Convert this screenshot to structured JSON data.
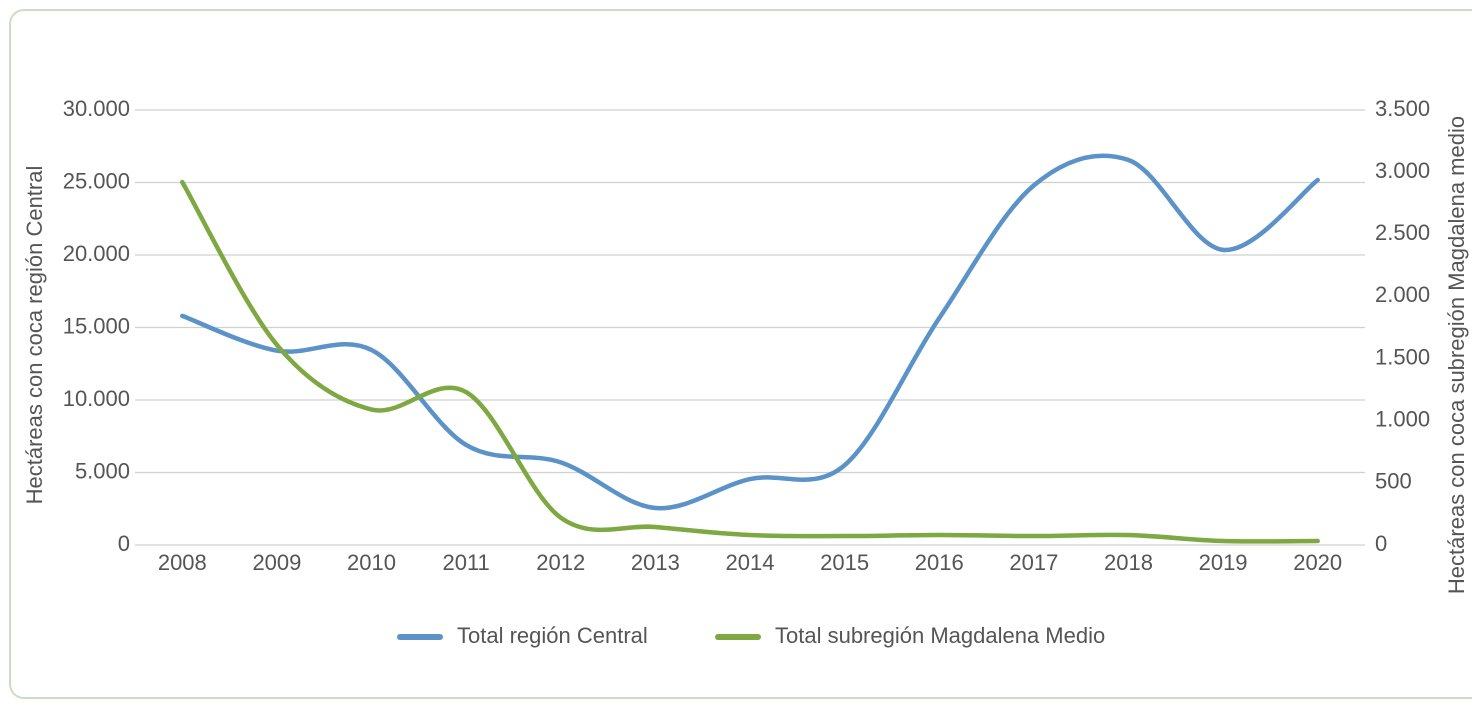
{
  "chart_data": {
    "type": "line",
    "categories": [
      "2008",
      "2009",
      "2010",
      "2011",
      "2012",
      "2013",
      "2014",
      "2015",
      "2016",
      "2017",
      "2018",
      "2019",
      "2020"
    ],
    "series": [
      {
        "name": "Total región Central",
        "color": "#5b93c9",
        "values": [
          15800,
          13400,
          13450,
          6900,
          5700,
          2550,
          4550,
          5500,
          15650,
          24800,
          26550,
          20350,
          25170
        ]
      },
      {
        "name": "Total subregión Magdalena Medio",
        "color": "#7ea841",
        "axis": "y2",
        "values": [
          2920,
          1610,
          1090,
          1230,
          220,
          145,
          80,
          72,
          80,
          72,
          80,
          32,
          32
        ]
      }
    ],
    "ylabel": "Hectáreas con coca región Central",
    "y2label": "Hectáreas con coca subregión Magdalena medio",
    "ylim": [
      0,
      30000
    ],
    "yticks": [
      0,
      {
        "value": 5000,
        "label": "5.000"
      },
      {
        "value": 10000,
        "label": "10.000"
      },
      {
        "value": 15000,
        "label": "15.000"
      },
      {
        "value": 20000,
        "label": "20.000"
      },
      {
        "value": 25000,
        "label": "25.000"
      },
      {
        "value": 30000,
        "label": "30.000"
      }
    ],
    "y2lim": [
      0,
      3500
    ],
    "y2ticks": [
      0,
      500,
      {
        "value": 1000,
        "label": "1.000"
      },
      {
        "value": 1500,
        "label": "1.500"
      },
      {
        "value": 2000,
        "label": "2.000"
      },
      {
        "value": 2500,
        "label": "2.500"
      },
      {
        "value": 3000,
        "label": "3.000"
      },
      {
        "value": 3500,
        "label": "3.500"
      }
    ],
    "grid": true,
    "legend": "bottom"
  }
}
